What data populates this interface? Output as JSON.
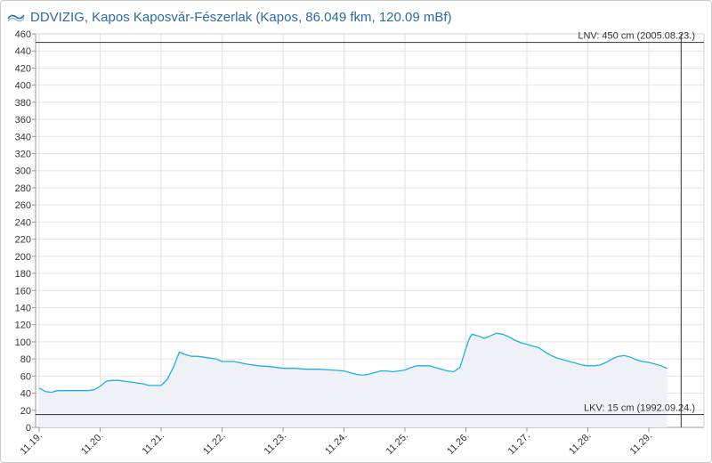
{
  "header": {
    "logo": "ddvizig-logo",
    "title": "DDVIZIG, Kapos Kaposvár-Fészerlak (Kapos, 86.049 fkm, 120.09 mBf)"
  },
  "chart_data": {
    "type": "area",
    "title": "DDVIZIG, Kapos Kaposvár-Fészerlak (Kapos, 86.049 fkm, 120.09 mBf)",
    "xlabel": "",
    "ylabel": "",
    "ylim": [
      0,
      460
    ],
    "yticks": [
      0,
      20,
      40,
      60,
      80,
      100,
      120,
      140,
      160,
      180,
      200,
      220,
      240,
      260,
      280,
      300,
      320,
      340,
      360,
      380,
      400,
      420,
      440,
      460
    ],
    "xlim": [
      0,
      10.53
    ],
    "xticks": [
      {
        "pos": 0,
        "label": "11.19."
      },
      {
        "pos": 1,
        "label": "11.20."
      },
      {
        "pos": 2,
        "label": "11.21."
      },
      {
        "pos": 3,
        "label": "11.22."
      },
      {
        "pos": 4,
        "label": "11.23."
      },
      {
        "pos": 5,
        "label": "11.24."
      },
      {
        "pos": 6,
        "label": "11.25."
      },
      {
        "pos": 7,
        "label": "11.26."
      },
      {
        "pos": 8,
        "label": "11.27."
      },
      {
        "pos": 9,
        "label": "11.28."
      },
      {
        "pos": 10,
        "label": "11.29."
      }
    ],
    "grid": true,
    "series": [
      {
        "color": "#1fb0e0",
        "fill": "#eef1f6",
        "x": [
          0.0,
          0.1,
          0.2,
          0.3,
          0.4,
          0.5,
          0.6,
          0.7,
          0.8,
          0.9,
          1.0,
          1.1,
          1.2,
          1.3,
          1.4,
          1.5,
          1.6,
          1.7,
          1.8,
          1.9,
          2.0,
          2.1,
          2.2,
          2.3,
          2.4,
          2.5,
          2.6,
          2.7,
          2.8,
          2.9,
          3.0,
          3.2,
          3.4,
          3.6,
          3.8,
          4.0,
          4.2,
          4.4,
          4.6,
          4.8,
          5.0,
          5.1,
          5.2,
          5.3,
          5.4,
          5.5,
          5.6,
          5.7,
          5.8,
          5.9,
          6.0,
          6.1,
          6.2,
          6.3,
          6.4,
          6.5,
          6.6,
          6.7,
          6.8,
          6.9,
          7.0,
          7.05,
          7.1,
          7.2,
          7.3,
          7.4,
          7.5,
          7.6,
          7.7,
          7.8,
          7.9,
          8.0,
          8.1,
          8.2,
          8.3,
          8.4,
          8.5,
          8.6,
          8.7,
          8.8,
          8.9,
          9.0,
          9.1,
          9.2,
          9.3,
          9.4,
          9.5,
          9.6,
          9.7,
          9.8,
          9.9,
          10.0,
          10.1,
          10.2,
          10.3
        ],
        "values": [
          46,
          42,
          41,
          43,
          43,
          43,
          43,
          43,
          43,
          44,
          48,
          54,
          55,
          55,
          54,
          53,
          52,
          51,
          49,
          49,
          49,
          56,
          70,
          88,
          85,
          83,
          83,
          82,
          81,
          80,
          77,
          77,
          74,
          72,
          71,
          69,
          69,
          68,
          68,
          67,
          66,
          64,
          62,
          61,
          62,
          64,
          66,
          66,
          65,
          66,
          67,
          70,
          72,
          72,
          72,
          70,
          68,
          66,
          65,
          70,
          92,
          103,
          109,
          107,
          104,
          107,
          110,
          109,
          106,
          102,
          99,
          97,
          95,
          93,
          88,
          84,
          81,
          79,
          77,
          75,
          73,
          72,
          72,
          73,
          76,
          80,
          83,
          84,
          82,
          79,
          77,
          76,
          74,
          72,
          69
        ]
      }
    ],
    "reference_lines": [
      {
        "value": 450,
        "label": "LNV: 450 cm (2005.08.23.)"
      },
      {
        "value": 15,
        "label": "LKV: 15 cm (1992.09.24.)"
      }
    ],
    "current_time_marker": 10.53
  }
}
